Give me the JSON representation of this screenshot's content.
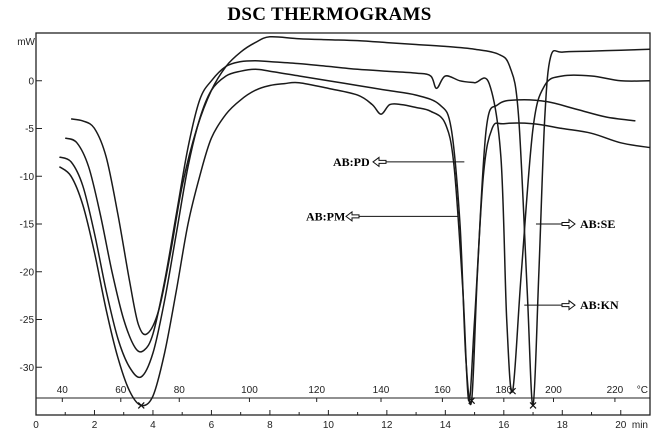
{
  "chart_data": {
    "type": "line",
    "title": "DSC THERMOGRAMS",
    "y_unit": "mW",
    "x_unit": "min",
    "temp_unit": "°C",
    "xlim": [
      0,
      21
    ],
    "ylim": [
      -35,
      5
    ],
    "x_ticks": [
      0,
      2,
      4,
      6,
      8,
      10,
      12,
      14,
      16,
      18,
      20
    ],
    "y_ticks": [
      0,
      -5,
      -10,
      -15,
      -20,
      -25,
      -30
    ],
    "temp_ticks": [
      {
        "label": "40",
        "min": 0.9
      },
      {
        "label": "60",
        "min": 2.9
      },
      {
        "label": "80",
        "min": 4.9
      },
      {
        "label": "100",
        "min": 7.3
      },
      {
        "label": "120",
        "min": 9.6
      },
      {
        "label": "140",
        "min": 11.8
      },
      {
        "label": "160",
        "min": 13.9
      },
      {
        "label": "180",
        "min": 16.0
      },
      {
        "label": "200",
        "min": 17.7
      },
      {
        "label": "220",
        "min": 19.8
      }
    ],
    "series": [
      {
        "name": "AB:SE",
        "x": [
          1.2,
          1.6,
          2.0,
          2.4,
          2.8,
          3.2,
          3.5,
          3.8,
          4.2,
          4.6,
          5.0,
          5.5,
          6.0,
          6.5,
          7.0,
          7.5,
          8.0,
          9.0,
          10.0,
          11.0,
          12.0,
          13.0,
          14.0,
          15.0,
          15.8,
          16.2,
          16.5,
          16.8,
          17.0,
          17.2,
          17.4,
          17.6,
          18.0,
          19.0,
          20.0,
          21.0
        ],
        "y": [
          -4.0,
          -4.2,
          -5.0,
          -8.0,
          -14.0,
          -21.0,
          -25.5,
          -26.5,
          -24.0,
          -18.0,
          -11.0,
          -5.0,
          -1.0,
          1.5,
          3.0,
          4.0,
          4.6,
          4.4,
          4.3,
          4.2,
          4.0,
          3.8,
          3.6,
          3.3,
          2.8,
          1.5,
          -3.5,
          -22.0,
          -34.0,
          -20.0,
          -4.0,
          2.5,
          3.0,
          3.1,
          3.2,
          3.3
        ]
      },
      {
        "name": "AB:KN",
        "x": [
          1.0,
          1.4,
          1.8,
          2.2,
          2.6,
          3.0,
          3.4,
          3.7,
          4.0,
          4.4,
          4.8,
          5.2,
          5.6,
          6.0,
          6.5,
          7.0,
          7.5,
          8.0,
          9.0,
          10.0,
          11.0,
          12.0,
          13.0,
          13.5,
          13.7,
          14.0,
          14.5,
          15.0,
          15.5,
          15.9,
          16.1,
          16.3,
          16.6,
          17.0,
          17.4,
          18.0,
          19.0,
          20.0,
          21.0
        ],
        "y": [
          -6.0,
          -6.5,
          -9.0,
          -14.0,
          -20.0,
          -25.0,
          -28.0,
          -28.2,
          -26.5,
          -21.0,
          -14.0,
          -7.0,
          -2.0,
          0.0,
          1.5,
          2.0,
          2.1,
          2.0,
          1.8,
          1.5,
          1.2,
          1.0,
          0.8,
          0.5,
          -0.8,
          0.5,
          0.0,
          -0.2,
          -0.3,
          -8.0,
          -25.0,
          -32.5,
          -20.0,
          -5.0,
          -0.5,
          0.5,
          0.5,
          0.0,
          0.0
        ]
      },
      {
        "name": "AB:PD",
        "x": [
          0.8,
          1.2,
          1.6,
          2.0,
          2.4,
          2.8,
          3.2,
          3.6,
          4.0,
          4.4,
          4.8,
          5.2,
          5.6,
          6.0,
          6.5,
          7.0,
          7.5,
          8.0,
          9.0,
          10.0,
          11.0,
          12.0,
          13.0,
          13.8,
          14.2,
          14.5,
          14.7,
          14.9,
          15.1,
          15.4,
          15.8,
          16.5,
          17.5,
          18.5,
          19.5,
          20.5
        ],
        "y": [
          -8.0,
          -8.5,
          -11.0,
          -16.0,
          -22.0,
          -27.0,
          -30.0,
          -31.0,
          -28.5,
          -23.0,
          -16.0,
          -9.0,
          -4.0,
          -1.0,
          0.5,
          1.0,
          1.2,
          1.0,
          0.5,
          0.0,
          -0.5,
          -1.0,
          -1.5,
          -2.5,
          -5.0,
          -15.0,
          -29.0,
          -33.5,
          -20.0,
          -5.0,
          -2.5,
          -2.0,
          -2.2,
          -3.0,
          -3.8,
          -4.2
        ]
      },
      {
        "name": "AB:PM",
        "x": [
          0.8,
          1.2,
          1.6,
          2.0,
          2.4,
          2.8,
          3.2,
          3.6,
          4.0,
          4.4,
          4.8,
          5.2,
          5.6,
          6.0,
          6.5,
          7.0,
          7.5,
          8.0,
          8.5,
          9.0,
          10.0,
          11.0,
          11.5,
          11.8,
          12.1,
          12.5,
          13.0,
          13.5,
          14.0,
          14.3,
          14.6,
          14.8,
          15.0,
          15.3,
          15.6,
          16.0,
          17.0,
          18.0,
          19.0,
          20.0,
          21.0
        ],
        "y": [
          -9.0,
          -10.0,
          -13.0,
          -18.0,
          -24.0,
          -29.0,
          -32.5,
          -34.0,
          -33.0,
          -28.5,
          -22.0,
          -15.0,
          -10.0,
          -6.0,
          -3.5,
          -2.0,
          -1.0,
          -0.5,
          -0.3,
          -0.2,
          -0.8,
          -1.5,
          -2.5,
          -3.5,
          -2.5,
          -2.5,
          -2.8,
          -3.2,
          -4.5,
          -9.0,
          -22.0,
          -33.5,
          -25.0,
          -10.0,
          -5.0,
          -4.5,
          -4.5,
          -5.0,
          -5.5,
          -6.5,
          -7.0
        ]
      }
    ],
    "annotations": [
      {
        "label": "AB:PD",
        "target_x": 14.65,
        "target_y": -8.5
      },
      {
        "label": "AB:PM",
        "target_x": 14.45,
        "target_y": -14.2
      },
      {
        "label": "AB:SE",
        "target_x": 17.1,
        "target_y": -15.0
      },
      {
        "label": "AB:KN",
        "target_x": 16.7,
        "target_y": -23.5
      }
    ],
    "grid": false,
    "legend": "none"
  }
}
